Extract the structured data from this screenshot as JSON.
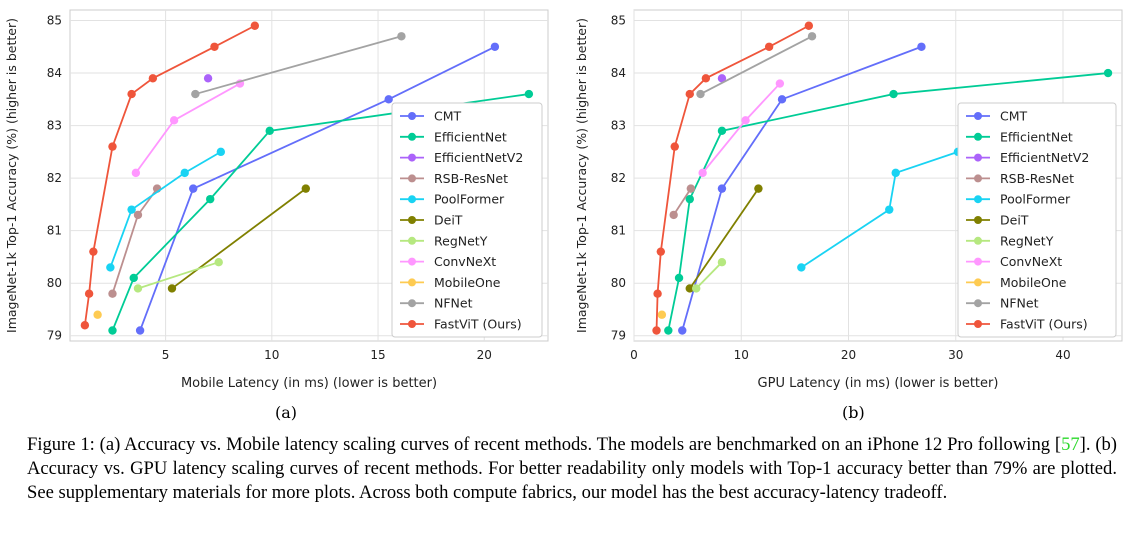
{
  "chart_data": [
    {
      "type": "line",
      "panel": "(a)",
      "xlabel": "Mobile Latency (in ms) (lower is better)",
      "ylabel": "ImageNet-1k Top-1 Accuracy (%) (higher is better)",
      "xlim": [
        0.5,
        23
      ],
      "ylim": [
        78.9,
        85.2
      ],
      "xticks": [
        5,
        10,
        15,
        20
      ],
      "yticks": [
        79,
        80,
        81,
        82,
        83,
        84,
        85
      ],
      "grid": true,
      "legend_position": "lower-right",
      "series": [
        {
          "name": "CMT",
          "color": "#636efa",
          "x": [
            3.8,
            6.3,
            15.5,
            20.5
          ],
          "y": [
            79.1,
            81.8,
            83.5,
            84.5
          ]
        },
        {
          "name": "EfficientNet",
          "color": "#00cc96",
          "x": [
            2.5,
            3.5,
            7.1,
            9.9,
            22.1
          ],
          "y": [
            79.1,
            80.1,
            81.6,
            82.9,
            83.6
          ]
        },
        {
          "name": "EfficientNetV2",
          "color": "#ab63fa",
          "x": [
            7.0
          ],
          "y": [
            83.9
          ]
        },
        {
          "name": "RSB-ResNet",
          "color": "#bc8f8f",
          "x": [
            2.5,
            3.7,
            4.6
          ],
          "y": [
            79.8,
            81.3,
            81.8
          ]
        },
        {
          "name": "PoolFormer",
          "color": "#19d3f3",
          "x": [
            2.4,
            3.4,
            5.9,
            7.6
          ],
          "y": [
            80.3,
            81.4,
            82.1,
            82.5
          ]
        },
        {
          "name": "DeiT",
          "color": "#808000",
          "x": [
            5.3,
            11.6
          ],
          "y": [
            79.9,
            81.8
          ]
        },
        {
          "name": "RegNetY",
          "color": "#b6e880",
          "x": [
            3.7,
            7.5
          ],
          "y": [
            79.9,
            80.4
          ]
        },
        {
          "name": "ConvNeXt",
          "color": "#ff97ff",
          "x": [
            3.6,
            5.4,
            8.5
          ],
          "y": [
            82.1,
            83.1,
            83.8
          ]
        },
        {
          "name": "MobileOne",
          "color": "#fecb52",
          "x": [
            1.8
          ],
          "y": [
            79.4
          ]
        },
        {
          "name": "NFNet",
          "color": "#a3a3a3",
          "x": [
            6.4,
            16.1
          ],
          "y": [
            83.6,
            84.7
          ]
        },
        {
          "name": "FastViT (Ours)",
          "color": "#ef553b",
          "x": [
            1.2,
            1.4,
            1.6,
            2.5,
            3.4,
            4.4,
            7.3,
            9.2
          ],
          "y": [
            79.2,
            79.8,
            80.6,
            82.6,
            83.6,
            83.9,
            84.5,
            84.9
          ]
        }
      ]
    },
    {
      "type": "line",
      "panel": "(b)",
      "xlabel": "GPU Latency (in ms) (lower is better)",
      "ylabel": "ImageNet-1k Top-1 Accuracy (%) (higher is better)",
      "xlim": [
        0,
        45.5
      ],
      "ylim": [
        78.9,
        85.2
      ],
      "xticks": [
        0,
        10,
        20,
        30,
        40
      ],
      "yticks": [
        79,
        80,
        81,
        82,
        83,
        84,
        85
      ],
      "grid": true,
      "legend_position": "lower-right",
      "series": [
        {
          "name": "CMT",
          "color": "#636efa",
          "x": [
            4.5,
            8.2,
            13.8,
            26.8
          ],
          "y": [
            79.1,
            81.8,
            83.5,
            84.5
          ]
        },
        {
          "name": "EfficientNet",
          "color": "#00cc96",
          "x": [
            3.2,
            4.2,
            5.2,
            8.2,
            24.2,
            44.2
          ],
          "y": [
            79.1,
            80.1,
            81.6,
            82.9,
            83.6,
            84.0
          ]
        },
        {
          "name": "EfficientNetV2",
          "color": "#ab63fa",
          "x": [
            8.2
          ],
          "y": [
            83.9
          ]
        },
        {
          "name": "RSB-ResNet",
          "color": "#bc8f8f",
          "x": [
            3.7,
            5.3
          ],
          "y": [
            81.3,
            81.8
          ]
        },
        {
          "name": "PoolFormer",
          "color": "#19d3f3",
          "x": [
            15.6,
            23.8,
            24.4,
            30.2
          ],
          "y": [
            80.3,
            81.4,
            82.1,
            82.5
          ]
        },
        {
          "name": "DeiT",
          "color": "#808000",
          "x": [
            5.2,
            11.6
          ],
          "y": [
            79.9,
            81.8
          ]
        },
        {
          "name": "RegNetY",
          "color": "#b6e880",
          "x": [
            5.8,
            8.2
          ],
          "y": [
            79.9,
            80.4
          ]
        },
        {
          "name": "ConvNeXt",
          "color": "#ff97ff",
          "x": [
            6.4,
            10.4,
            13.6
          ],
          "y": [
            82.1,
            83.1,
            83.8
          ]
        },
        {
          "name": "MobileOne",
          "color": "#fecb52",
          "x": [
            2.6
          ],
          "y": [
            79.4
          ]
        },
        {
          "name": "NFNet",
          "color": "#a3a3a3",
          "x": [
            6.2,
            16.6
          ],
          "y": [
            83.6,
            84.7
          ]
        },
        {
          "name": "FastViT (Ours)",
          "color": "#ef553b",
          "x": [
            2.1,
            2.2,
            2.5,
            3.8,
            5.2,
            6.7,
            12.6,
            16.3
          ],
          "y": [
            79.1,
            79.8,
            80.6,
            82.6,
            83.6,
            83.9,
            84.5,
            84.9
          ]
        }
      ]
    }
  ],
  "subfigure_labels": {
    "a": "(a)",
    "b": "(b)"
  },
  "caption": {
    "part1": "Figure 1: (a) Accuracy vs. Mobile latency scaling curves of recent methods. The models are benchmarked on an iPhone 12 Pro following  [",
    "citation": "57",
    "part2": "]. (b) Accuracy vs. GPU latency scaling curves of recent methods. For better readability only models with Top-1 accuracy better than 79% are plotted. See supplementary materials for more plots. Across both compute fabrics, our model has the best accuracy-latency tradeoff."
  }
}
